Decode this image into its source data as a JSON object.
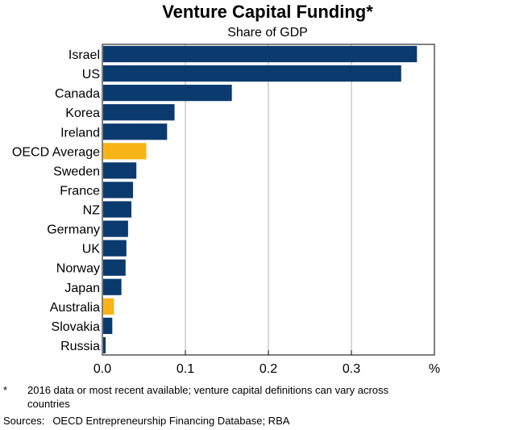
{
  "chart_data": {
    "type": "bar",
    "orientation": "horizontal",
    "title": "Venture Capital Funding*",
    "subtitle": "Share of GDP",
    "unit_label": "%",
    "categories": [
      "Israel",
      "US",
      "Canada",
      "Korea",
      "Ireland",
      "OECD Average",
      "Sweden",
      "France",
      "NZ",
      "Germany",
      "UK",
      "Norway",
      "Japan",
      "Australia",
      "Slovakia",
      "Russia"
    ],
    "values": [
      0.378,
      0.359,
      0.155,
      0.086,
      0.077,
      0.052,
      0.04,
      0.036,
      0.034,
      0.03,
      0.028,
      0.027,
      0.022,
      0.013,
      0.011,
      0.003
    ],
    "highlight": [
      "OECD Average",
      "Australia"
    ],
    "xlim": [
      0,
      0.4
    ],
    "xticks": [
      0.0,
      0.1,
      0.2,
      0.3
    ],
    "xtick_labels": [
      "0.0",
      "0.1",
      "0.2",
      "0.3"
    ],
    "colors": {
      "bar": "#0b3a6e",
      "highlight": "#f8b416",
      "grid": "#b0b0b0"
    },
    "grid": true
  },
  "footnote": {
    "marker": "*",
    "text": "2016 data or most recent available; venture capital definitions can vary across countries"
  },
  "sources": {
    "label": "Sources:",
    "text": "OECD Entrepreneurship Financing Database; RBA"
  }
}
